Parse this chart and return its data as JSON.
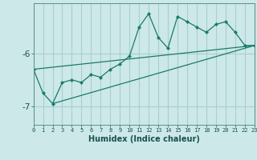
{
  "xlabel": "Humidex (Indice chaleur)",
  "background_color": "#cce8e8",
  "grid_color": "#aacece",
  "line_color": "#1a7a6a",
  "x_values": [
    0,
    1,
    2,
    3,
    4,
    5,
    6,
    7,
    8,
    9,
    10,
    11,
    12,
    13,
    14,
    15,
    16,
    17,
    18,
    19,
    20,
    21,
    22,
    23
  ],
  "main_y": [
    -6.3,
    -6.75,
    -6.95,
    -6.55,
    -6.5,
    -6.55,
    -6.4,
    -6.45,
    -6.3,
    -6.2,
    -6.05,
    -5.5,
    -5.25,
    -5.7,
    -5.9,
    -5.3,
    -5.4,
    -5.5,
    -5.6,
    -5.45,
    -5.4,
    -5.6,
    -5.85,
    -5.85
  ],
  "trend1_x": [
    0,
    23
  ],
  "trend1_y": [
    -6.3,
    -5.85
  ],
  "trend2_x": [
    2,
    23
  ],
  "trend2_y": [
    -6.95,
    -5.85
  ],
  "yticks": [
    -7,
    -6
  ],
  "ylim": [
    -7.35,
    -5.05
  ],
  "xlim": [
    0,
    23
  ]
}
